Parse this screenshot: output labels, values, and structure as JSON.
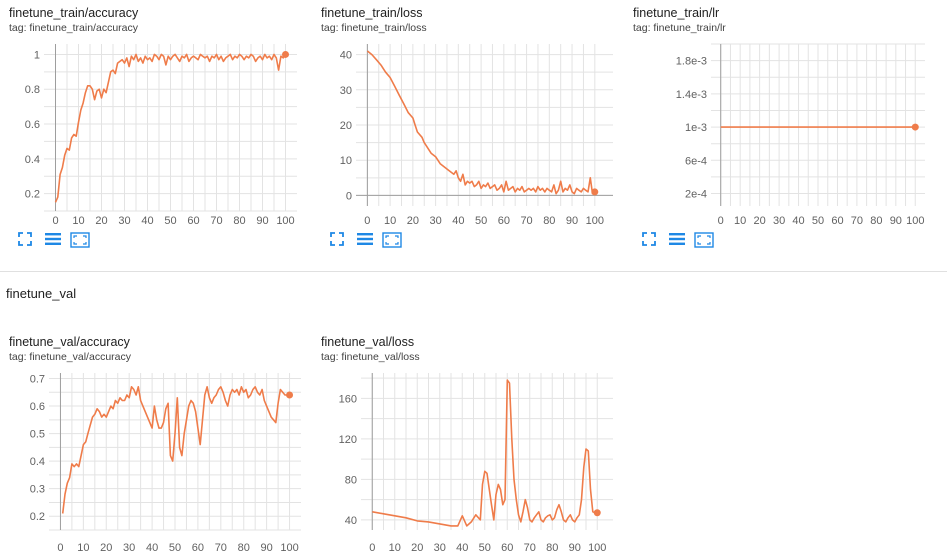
{
  "colors": {
    "series": "#ef7c4a",
    "grid": "#e3e3e3",
    "axis": "#9e9e9e",
    "icon": "#1e88e5"
  },
  "toolbar_icons": [
    "fullscreen-icon",
    "data-table-icon",
    "fit-domain-icon"
  ],
  "section_title": "finetune_val",
  "chart_data": [
    {
      "id": "train_acc",
      "type": "line",
      "title": "finetune_train/accuracy",
      "tag": "tag: finetune_train/accuracy",
      "xlim": [
        -5,
        105
      ],
      "ylim": [
        0.1,
        1.06
      ],
      "xticks": [
        "0",
        "10",
        "20",
        "30",
        "40",
        "50",
        "60",
        "70",
        "80",
        "90",
        "100"
      ],
      "xtick_values": [
        0,
        10,
        20,
        30,
        40,
        50,
        60,
        70,
        80,
        90,
        100
      ],
      "yticks": [
        "0.2",
        "0.4",
        "0.6",
        "0.8",
        "1"
      ],
      "ytick_values": [
        0.2,
        0.4,
        0.6,
        0.8,
        1.0
      ],
      "grid": true,
      "x": [
        0,
        1,
        2,
        3,
        4,
        5,
        6,
        7,
        8,
        9,
        10,
        11,
        12,
        13,
        14,
        15,
        16,
        17,
        18,
        19,
        20,
        21,
        22,
        23,
        24,
        25,
        26,
        27,
        28,
        29,
        30,
        31,
        32,
        33,
        34,
        35,
        36,
        37,
        38,
        39,
        40,
        41,
        42,
        43,
        44,
        45,
        46,
        47,
        48,
        49,
        50,
        51,
        52,
        53,
        54,
        55,
        56,
        57,
        58,
        59,
        60,
        61,
        62,
        63,
        64,
        65,
        66,
        67,
        68,
        69,
        70,
        71,
        72,
        73,
        74,
        75,
        76,
        77,
        78,
        79,
        80,
        81,
        82,
        83,
        84,
        85,
        86,
        87,
        88,
        89,
        90,
        91,
        92,
        93,
        94,
        95,
        96,
        97,
        98,
        99,
        100
      ],
      "y": [
        0.15,
        0.18,
        0.31,
        0.35,
        0.42,
        0.46,
        0.45,
        0.52,
        0.54,
        0.53,
        0.61,
        0.68,
        0.72,
        0.78,
        0.82,
        0.82,
        0.8,
        0.74,
        0.79,
        0.8,
        0.75,
        0.8,
        0.78,
        0.84,
        0.9,
        0.91,
        0.89,
        0.95,
        0.96,
        0.97,
        0.95,
        0.98,
        0.93,
        0.99,
        0.97,
        1.0,
        0.96,
        0.98,
        0.95,
        0.99,
        0.97,
        0.98,
        0.96,
        1.0,
        0.99,
        0.97,
        1.0,
        0.99,
        0.94,
        0.99,
        0.97,
        0.99,
        1.0,
        0.98,
        0.96,
        0.99,
        0.98,
        1.0,
        0.96,
        0.98,
        0.99,
        0.98,
        0.97,
        1.0,
        0.99,
        0.98,
        0.99,
        0.96,
        0.99,
        0.98,
        1.0,
        0.97,
        0.99,
        0.96,
        0.98,
        0.99,
        1.0,
        0.97,
        0.99,
        0.98,
        1.0,
        0.99,
        0.97,
        0.99,
        0.98,
        1.0,
        0.99,
        0.96,
        0.98,
        0.99,
        0.97,
        1.0,
        0.98,
        0.99,
        0.97,
        1.0,
        0.98,
        0.91,
        0.99,
        0.98,
        1.0
      ]
    },
    {
      "id": "train_loss",
      "type": "line",
      "title": "finetune_train/loss",
      "tag": "tag: finetune_train/loss",
      "xlim": [
        -5,
        108
      ],
      "ylim": [
        -3,
        43
      ],
      "xticks": [
        "0",
        "10",
        "20",
        "30",
        "40",
        "50",
        "60",
        "70",
        "80",
        "90",
        "100"
      ],
      "xtick_values": [
        0,
        10,
        20,
        30,
        40,
        50,
        60,
        70,
        80,
        90,
        100
      ],
      "yticks": [
        "0",
        "10",
        "20",
        "30",
        "40"
      ],
      "ytick_values": [
        0,
        10,
        20,
        30,
        40
      ],
      "grid": true,
      "x": [
        0,
        2,
        4,
        6,
        8,
        10,
        12,
        14,
        16,
        18,
        20,
        21,
        22,
        24,
        25,
        26,
        28,
        30,
        32,
        34,
        36,
        38,
        39,
        40,
        41,
        42,
        43,
        44,
        45,
        46,
        47,
        48,
        49,
        50,
        51,
        52,
        53,
        54,
        55,
        56,
        57,
        58,
        59,
        60,
        61,
        62,
        63,
        64,
        65,
        66,
        67,
        68,
        69,
        70,
        71,
        72,
        73,
        74,
        75,
        76,
        77,
        78,
        79,
        80,
        81,
        82,
        83,
        84,
        85,
        86,
        87,
        88,
        89,
        90,
        91,
        92,
        93,
        94,
        95,
        96,
        97,
        98,
        99,
        100
      ],
      "y": [
        41,
        40,
        38.5,
        37,
        35,
        33.5,
        31,
        28.5,
        26,
        23.5,
        22,
        20,
        18,
        16.5,
        15,
        14,
        12,
        11,
        9,
        8,
        7,
        6,
        7,
        5,
        4,
        6,
        3,
        4,
        3.5,
        4,
        2.5,
        3,
        4,
        2,
        3,
        2.5,
        3.5,
        2,
        2.5,
        3,
        1.5,
        2,
        3,
        1,
        4,
        1.5,
        2,
        2.5,
        1,
        2,
        1.5,
        2.5,
        1,
        1.5,
        2,
        1.5,
        2,
        1,
        2.5,
        1.5,
        2,
        1,
        2,
        1.5,
        1,
        3,
        0.5,
        1.5,
        4,
        1,
        2,
        1.5,
        3,
        1,
        0.5,
        2,
        1.5,
        1,
        2,
        1.5,
        1,
        5,
        0.5,
        1
      ]
    },
    {
      "id": "train_lr",
      "type": "line",
      "title": "finetune_train/lr",
      "tag": "tag: finetune_train/lr",
      "xlim": [
        -5,
        105
      ],
      "ylim": [
        5e-05,
        0.002
      ],
      "xticks": [
        "0",
        "10",
        "20",
        "30",
        "40",
        "50",
        "60",
        "70",
        "80",
        "90",
        "100"
      ],
      "xtick_values": [
        0,
        10,
        20,
        30,
        40,
        50,
        60,
        70,
        80,
        90,
        100
      ],
      "yticks": [
        "2e-4",
        "6e-4",
        "1e-3",
        "1.4e-3",
        "1.8e-3"
      ],
      "ytick_values": [
        0.0002,
        0.0006,
        0.001,
        0.0014,
        0.0018
      ],
      "grid": true,
      "x": [
        0,
        100
      ],
      "y": [
        0.001,
        0.001
      ]
    },
    {
      "id": "val_acc",
      "type": "line",
      "title": "finetune_val/accuracy",
      "tag": "tag: finetune_val/accuracy",
      "xlim": [
        -5,
        105
      ],
      "ylim": [
        0.15,
        0.72
      ],
      "xticks": [
        "0",
        "10",
        "20",
        "30",
        "40",
        "50",
        "60",
        "70",
        "80",
        "90",
        "100"
      ],
      "xtick_values": [
        0,
        10,
        20,
        30,
        40,
        50,
        60,
        70,
        80,
        90,
        100
      ],
      "yticks": [
        "0.2",
        "0.3",
        "0.4",
        "0.5",
        "0.6",
        "0.7"
      ],
      "ytick_values": [
        0.2,
        0.3,
        0.4,
        0.5,
        0.6,
        0.7
      ],
      "grid": true,
      "x": [
        1,
        2,
        3,
        4,
        5,
        6,
        7,
        8,
        9,
        10,
        11,
        12,
        13,
        14,
        15,
        16,
        17,
        18,
        19,
        20,
        21,
        22,
        23,
        24,
        25,
        26,
        27,
        28,
        29,
        30,
        31,
        32,
        33,
        34,
        35,
        36,
        37,
        38,
        39,
        40,
        41,
        42,
        43,
        44,
        45,
        46,
        47,
        48,
        49,
        50,
        51,
        52,
        53,
        54,
        55,
        56,
        57,
        58,
        59,
        60,
        61,
        62,
        63,
        64,
        65,
        66,
        67,
        68,
        69,
        70,
        71,
        72,
        73,
        74,
        75,
        76,
        77,
        78,
        79,
        80,
        81,
        82,
        83,
        84,
        85,
        86,
        87,
        88,
        89,
        90,
        91,
        92,
        93,
        94,
        95,
        96,
        97,
        98,
        99,
        100
      ],
      "y": [
        0.21,
        0.28,
        0.32,
        0.34,
        0.39,
        0.38,
        0.39,
        0.38,
        0.42,
        0.46,
        0.47,
        0.5,
        0.53,
        0.56,
        0.57,
        0.59,
        0.58,
        0.56,
        0.57,
        0.56,
        0.58,
        0.6,
        0.59,
        0.62,
        0.61,
        0.63,
        0.62,
        0.62,
        0.64,
        0.63,
        0.67,
        0.66,
        0.64,
        0.67,
        0.62,
        0.6,
        0.58,
        0.56,
        0.54,
        0.52,
        0.6,
        0.55,
        0.52,
        0.52,
        0.54,
        0.59,
        0.61,
        0.42,
        0.4,
        0.5,
        0.63,
        0.45,
        0.42,
        0.5,
        0.55,
        0.6,
        0.62,
        0.61,
        0.58,
        0.52,
        0.46,
        0.55,
        0.64,
        0.67,
        0.63,
        0.61,
        0.63,
        0.64,
        0.66,
        0.67,
        0.65,
        0.62,
        0.6,
        0.64,
        0.66,
        0.65,
        0.66,
        0.64,
        0.67,
        0.65,
        0.66,
        0.63,
        0.64,
        0.66,
        0.67,
        0.65,
        0.64,
        0.66,
        0.62,
        0.6,
        0.58,
        0.56,
        0.55,
        0.54,
        0.61,
        0.66,
        0.65,
        0.64,
        0.64,
        0.64
      ]
    },
    {
      "id": "val_loss",
      "type": "line",
      "title": "finetune_val/loss",
      "tag": "tag: finetune_val/loss",
      "xlim": [
        -5,
        107
      ],
      "ylim": [
        30,
        185
      ],
      "xticks": [
        "0",
        "10",
        "20",
        "30",
        "40",
        "50",
        "60",
        "70",
        "80",
        "90",
        "100"
      ],
      "xtick_values": [
        0,
        10,
        20,
        30,
        40,
        50,
        60,
        70,
        80,
        90,
        100
      ],
      "yticks": [
        "40",
        "80",
        "120",
        "160"
      ],
      "ytick_values": [
        40,
        80,
        120,
        160
      ],
      "grid": true,
      "x": [
        0,
        5,
        10,
        15,
        20,
        25,
        30,
        35,
        38,
        40,
        42,
        44,
        46,
        48,
        49,
        50,
        51,
        52,
        53,
        54,
        55,
        56,
        57,
        58,
        59,
        60,
        61,
        62,
        63,
        64,
        65,
        66,
        67,
        68,
        69,
        70,
        71,
        72,
        73,
        74,
        75,
        76,
        77,
        78,
        79,
        80,
        81,
        82,
        83,
        84,
        85,
        86,
        87,
        88,
        89,
        90,
        91,
        92,
        93,
        94,
        95,
        96,
        97,
        98,
        99,
        100
      ],
      "y": [
        48,
        46,
        44,
        42,
        39,
        38,
        36,
        34,
        34,
        44,
        34,
        38,
        45,
        40,
        75,
        88,
        86,
        70,
        55,
        40,
        65,
        75,
        70,
        55,
        60,
        178,
        175,
        120,
        80,
        60,
        45,
        38,
        48,
        60,
        52,
        40,
        38,
        42,
        45,
        48,
        40,
        38,
        42,
        44,
        45,
        40,
        42,
        50,
        55,
        48,
        40,
        38,
        42,
        45,
        40,
        38,
        42,
        45,
        60,
        92,
        110,
        108,
        70,
        48,
        47,
        47
      ]
    }
  ]
}
